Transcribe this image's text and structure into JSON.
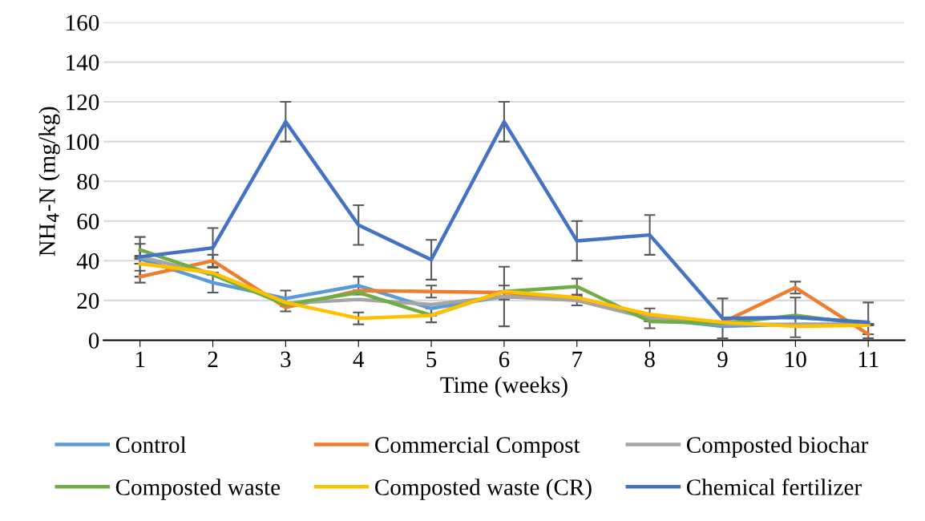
{
  "chart_data": {
    "type": "line",
    "xlabel": "Time (weeks)",
    "ylabel": "NH$_{4}$-N (mg/kg)",
    "categories": [
      "1",
      "2",
      "3",
      "4",
      "5",
      "6",
      "7",
      "8",
      "9",
      "10",
      "11"
    ],
    "ylim": [
      0,
      160
    ],
    "yticks": [
      0,
      20,
      40,
      60,
      80,
      100,
      120,
      140,
      160
    ],
    "grid": "y",
    "legend": "bottom",
    "marker": "none",
    "line_style": "solid",
    "series": [
      {
        "name": "Control",
        "color": "#5b9bd5",
        "values": [
          41,
          29,
          21,
          27.5,
          16,
          22,
          21,
          11,
          7,
          8,
          8
        ],
        "errors": [
          null,
          5,
          4,
          4.5,
          null,
          null,
          null,
          null,
          null,
          null,
          null
        ]
      },
      {
        "name": "Commercial Compost",
        "color": "#ed7d31",
        "values": [
          32,
          40,
          16.5,
          25,
          24.5,
          24,
          21,
          12,
          9,
          26.5,
          3
        ],
        "errors": [
          3,
          3,
          2,
          null,
          3,
          3.5,
          null,
          null,
          null,
          3,
          null
        ]
      },
      {
        "name": "Composted biochar",
        "color": "#a5a5a5",
        "values": [
          42,
          33,
          18.5,
          20.5,
          18,
          22,
          20,
          11,
          8,
          8,
          8
        ],
        "errors": [
          null,
          null,
          null,
          null,
          null,
          15,
          2.5,
          5,
          null,
          null,
          null
        ]
      },
      {
        "name": "Composted waste",
        "color": "#70ad47",
        "values": [
          45.5,
          33,
          18,
          24,
          12.5,
          24.5,
          27,
          9.5,
          8.5,
          12.5,
          8
        ],
        "errors": [
          3,
          null,
          null,
          null,
          3.5,
          null,
          4,
          null,
          null,
          null,
          null
        ]
      },
      {
        "name": "Composted waste (CR)",
        "color": "#ffc000",
        "values": [
          38.5,
          34,
          19,
          11,
          12.5,
          24.5,
          21.5,
          13,
          9,
          7,
          7.5
        ],
        "errors": [
          null,
          null,
          null,
          3,
          null,
          null,
          null,
          null,
          null,
          null,
          null
        ]
      },
      {
        "name": "Chemical fertilizer",
        "color": "#4472c4",
        "values": [
          42,
          46.5,
          110,
          58,
          40.5,
          110,
          50,
          53,
          11,
          11.5,
          9
        ],
        "errors": [
          10,
          10,
          10,
          10,
          10,
          10,
          10,
          10,
          10,
          10,
          [
            1,
            19
          ]
        ]
      }
    ]
  }
}
